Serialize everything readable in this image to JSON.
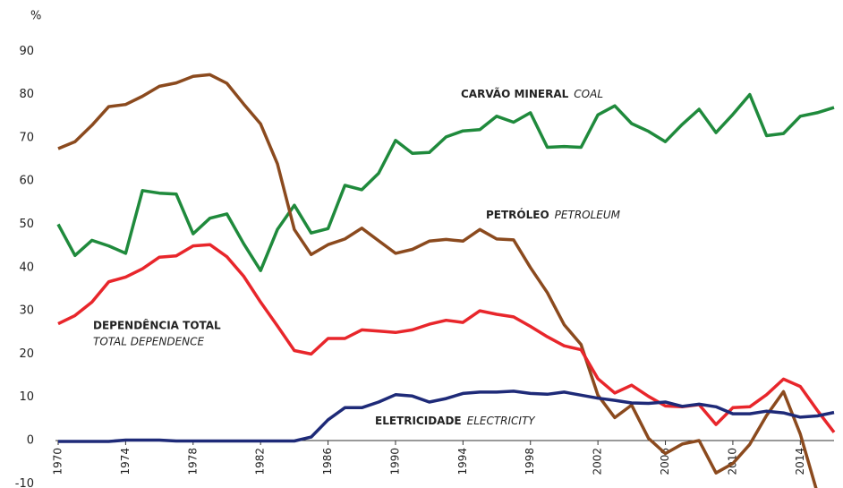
{
  "chart_data": {
    "type": "line",
    "y_label": "%",
    "x": [
      1970,
      1971,
      1972,
      1973,
      1974,
      1975,
      1976,
      1977,
      1978,
      1979,
      1980,
      1981,
      1982,
      1983,
      1984,
      1985,
      1986,
      1987,
      1988,
      1989,
      1990,
      1991,
      1992,
      1993,
      1994,
      1995,
      1996,
      1997,
      1998,
      1999,
      2000,
      2001,
      2002,
      2003,
      2004,
      2005,
      2006,
      2007,
      2008,
      2009,
      2010,
      2011,
      2012,
      2013,
      2014,
      2015,
      2016
    ],
    "xlim": [
      1970,
      2016
    ],
    "xticks": [
      1970,
      1974,
      1978,
      1982,
      1986,
      1990,
      1994,
      1998,
      2002,
      2006,
      2010,
      2014
    ],
    "ylim": [
      -10,
      90
    ],
    "yticks": [
      -10,
      0,
      10,
      20,
      30,
      40,
      50,
      60,
      70,
      80,
      90
    ],
    "grid": false,
    "series": [
      {
        "name": "CARVÃO MINERAL",
        "name_en": "COAL",
        "color": "#1f8a3c",
        "values": [
          50,
          42.8,
          46.3,
          45,
          43.3,
          57.8,
          57.2,
          57,
          47.8,
          51.4,
          52.4,
          45.5,
          39.3,
          48.8,
          54.4,
          48,
          49,
          59,
          58,
          61.8,
          69.4,
          66.4,
          66.6,
          70.2,
          71.6,
          71.9,
          75,
          73.6,
          75.8,
          67.8,
          68,
          67.8,
          75.3,
          77.4,
          73.3,
          71.5,
          69.1,
          73.1,
          76.6,
          71.2,
          75.4,
          80,
          70.5,
          71,
          75,
          75.8,
          77
        ]
      },
      {
        "name": "PETRÓLEO",
        "name_en": "PETROLEUM",
        "color": "#8b4a1e",
        "values": [
          67.5,
          69.1,
          72.9,
          77.2,
          77.7,
          79.6,
          81.9,
          82.7,
          84.2,
          84.6,
          82.6,
          77.8,
          73.2,
          64,
          48.8,
          43,
          45.3,
          46.6,
          49.1,
          46.2,
          43.3,
          44.2,
          46.1,
          46.5,
          46.1,
          48.8,
          46.6,
          46.4,
          40,
          34.2,
          26.8,
          22.2,
          10.5,
          5.3,
          8.2,
          0.5,
          -3,
          -0.8,
          0,
          -7.5,
          -5.3,
          -0.9,
          5.8,
          11.3,
          1.5,
          -12,
          null
        ]
      },
      {
        "name": "DEPENDÊNCIA TOTAL",
        "name_en": "TOTAL DEPENDENCE",
        "color": "#e8262b",
        "values": [
          27,
          28.9,
          32,
          36.7,
          37.8,
          39.7,
          42.4,
          42.7,
          45,
          45.3,
          42.5,
          38,
          32,
          26.5,
          20.8,
          20,
          23.6,
          23.6,
          25.6,
          25.3,
          25,
          25.6,
          26.9,
          27.8,
          27.3,
          30,
          29.2,
          28.6,
          26.4,
          24,
          21.9,
          21,
          14.3,
          11,
          12.8,
          10.2,
          8,
          7.8,
          8.3,
          3.7,
          7.6,
          7.8,
          10.6,
          14.2,
          12.5,
          7,
          1.9
        ]
      },
      {
        "name": "ELETRICIDADE",
        "name_en": "ELECTRICITY",
        "color": "#1e2a78",
        "values": [
          -0.2,
          -0.2,
          -0.2,
          -0.2,
          0.1,
          0.1,
          0.1,
          -0.1,
          -0.1,
          -0.1,
          -0.1,
          -0.1,
          -0.1,
          -0.1,
          -0.1,
          0.8,
          4.8,
          7.6,
          7.6,
          8.9,
          10.6,
          10.3,
          8.9,
          9.7,
          10.9,
          11.2,
          11.2,
          11.4,
          10.9,
          10.7,
          11.2,
          10.5,
          9.8,
          9.3,
          8.7,
          8.6,
          8.9,
          7.9,
          8.4,
          7.8,
          6.2,
          6.2,
          6.8,
          6.4,
          5.4,
          5.7,
          6.5
        ]
      }
    ]
  }
}
